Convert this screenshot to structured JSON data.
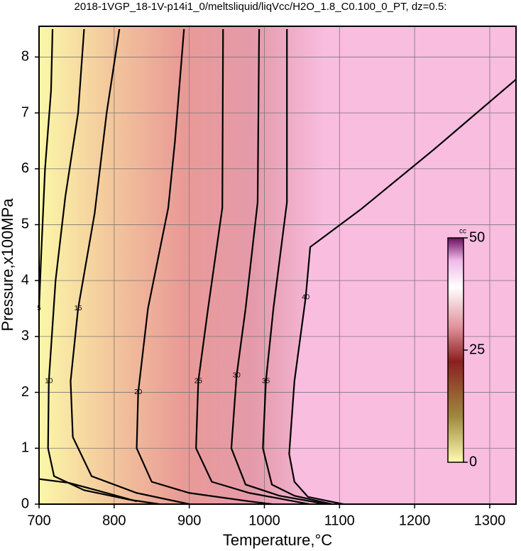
{
  "chart_data": {
    "type": "contour",
    "title": "2018-1VGP_18-1V-p14i1_0/meltsliquid/liqVcc/H2O_1.8_C0.100_0_PT, dz=0.5:",
    "xlabel": "Temperature,°C",
    "ylabel": "Pressure,x100MPa",
    "xlim": [
      700,
      1335
    ],
    "ylim": [
      0,
      8.55
    ],
    "xticks": [
      700,
      800,
      900,
      1000,
      1100,
      1200,
      1300
    ],
    "yticks": [
      0,
      1,
      2,
      3,
      4,
      5,
      6,
      7,
      8
    ],
    "grid": true,
    "colormap": [
      "#fbf7a8",
      "#f3c79c",
      "#e99a96",
      "#e49aaa",
      "#f9bde0"
    ],
    "contours": [
      {
        "level": 5,
        "x": [
          718,
          716,
          708,
          703,
          700,
          null,
          700,
          740,
          790,
          830
        ],
        "y": [
          8.5,
          7.4,
          6.0,
          4.5,
          3.5,
          null,
          0.45,
          0.38,
          0.2,
          0.05
        ]
      },
      {
        "level": 10,
        "x": [
          760,
          752,
          735,
          722,
          713,
          712,
          720,
          760,
          820,
          860
        ],
        "y": [
          8.5,
          7.0,
          5.5,
          4.0,
          2.2,
          1.0,
          0.5,
          0.25,
          0.08,
          0
        ]
      },
      {
        "level": 15,
        "x": [
          807,
          790,
          774,
          752,
          742,
          745,
          770,
          830,
          900
        ],
        "y": [
          8.5,
          7.0,
          5.2,
          3.5,
          2.2,
          1.2,
          0.5,
          0.2,
          0
        ]
      },
      {
        "level": 20,
        "x": [
          893,
          881,
          872,
          845,
          832,
          830,
          850,
          900,
          980,
          1010
        ],
        "y": [
          8.5,
          6.5,
          5.3,
          3.5,
          2.0,
          1.0,
          0.4,
          0.2,
          0.05,
          0
        ]
      },
      {
        "level": 25,
        "x": [
          945,
          944,
          925,
          912,
          909,
          930,
          980,
          1040,
          1060
        ],
        "y": [
          8.5,
          5.3,
          3.5,
          2.2,
          1.0,
          0.4,
          0.2,
          0.05,
          0
        ]
      },
      {
        "level": 30,
        "x": [
          993,
          991,
          975,
          963,
          956,
          975,
          1020,
          1070,
          1080
        ],
        "y": [
          8.5,
          5.4,
          3.5,
          2.3,
          1.0,
          0.35,
          0.15,
          0.03,
          0
        ]
      },
      {
        "level": 35,
        "x": [
          1030,
          1030,
          1012,
          1002,
          998,
          1010,
          1040,
          1080,
          1090
        ],
        "y": [
          8.5,
          5.4,
          3.5,
          2.2,
          1.0,
          0.35,
          0.15,
          0.03,
          0
        ]
      },
      {
        "level": 40,
        "x": [
          1335,
          1226,
          1128,
          1061,
          1055,
          1040,
          1033,
          1040,
          1058,
          1105
        ],
        "y": [
          7.6,
          6.35,
          5.27,
          4.6,
          3.7,
          2.2,
          0.9,
          0.4,
          0.13,
          0
        ]
      }
    ],
    "colorbar": {
      "label": "cc",
      "lim": [
        0,
        50
      ],
      "ticks": [
        0,
        25,
        50
      ]
    }
  }
}
